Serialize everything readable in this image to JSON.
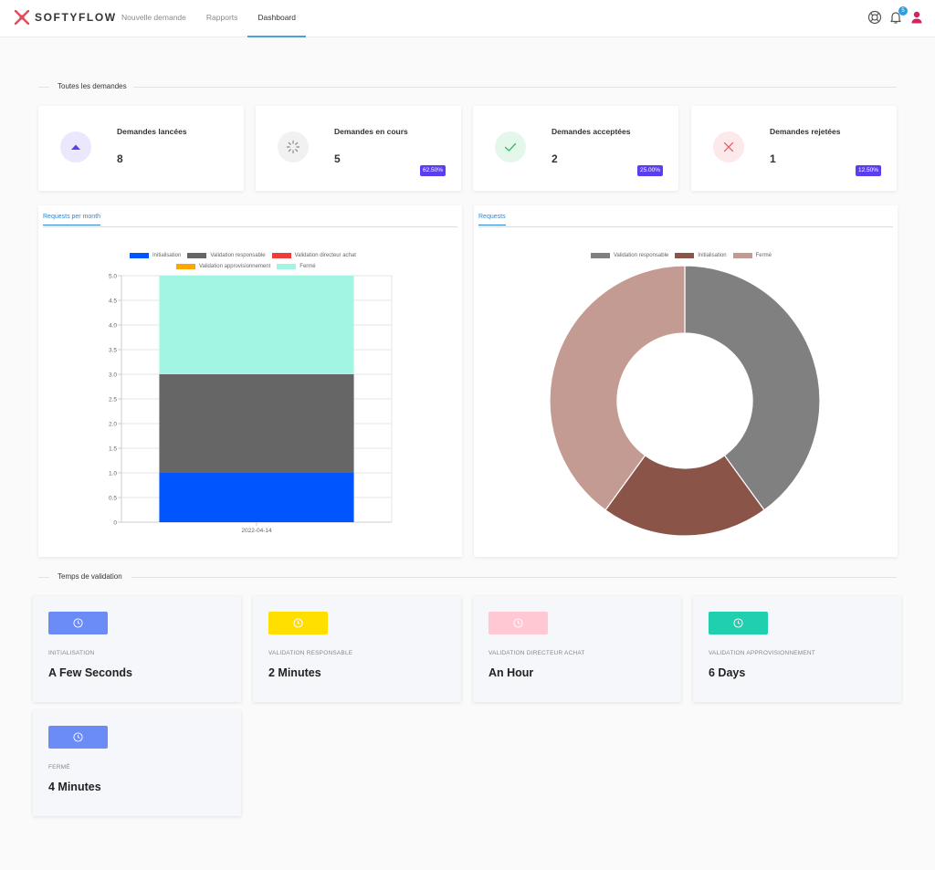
{
  "app": {
    "brand": "SOFTYFLOW"
  },
  "nav": [
    {
      "label": "Nouvelle demande"
    },
    {
      "label": "Rapports"
    },
    {
      "label": "Dashboard"
    }
  ],
  "header": {
    "notification_count": "5",
    "icons": [
      "support-icon",
      "bell-icon",
      "user-icon"
    ]
  },
  "sections": {
    "all_requests": "Toutes les demandes",
    "validation_time": "Temps de validation"
  },
  "stats": [
    {
      "title": "Demandes lancées",
      "value": "8",
      "pct": "",
      "icon": "triangle-up-icon",
      "icon_bg": "#ebe7fd",
      "icon_color": "#5b3ef0"
    },
    {
      "title": "Demandes en cours",
      "value": "5",
      "pct": "62.50%",
      "icon": "spinner-icon",
      "icon_bg": "#f1f1f1",
      "icon_color": "#888888"
    },
    {
      "title": "Demandes acceptées",
      "value": "2",
      "pct": "25.00%",
      "icon": "check-icon",
      "icon_bg": "#e3f8ea",
      "icon_color": "#3bb56a"
    },
    {
      "title": "Demandes rejetées",
      "value": "1",
      "pct": "12.50%",
      "icon": "close-icon",
      "icon_bg": "#fde8ea",
      "icon_color": "#e0505c"
    }
  ],
  "panels": {
    "left_tab": "Requests per month",
    "right_tab": "Requests"
  },
  "chart_data": [
    {
      "type": "bar",
      "stacked": true,
      "categories": [
        "2022-04-14"
      ],
      "series": [
        {
          "name": "Initialisation",
          "values": [
            1
          ],
          "color": "#0055ff"
        },
        {
          "name": "Validation responsable",
          "values": [
            2
          ],
          "color": "#666666"
        },
        {
          "name": "Validation directeur achat",
          "values": [
            0
          ],
          "color": "#ee3b3b"
        },
        {
          "name": "Validation approvisionnement",
          "values": [
            0
          ],
          "color": "#ffa500"
        },
        {
          "name": "Fermé",
          "values": [
            2
          ],
          "color": "#a2f5e2"
        }
      ],
      "ylim": [
        0,
        5
      ],
      "yticks": [
        "0",
        "0.5",
        "1.0",
        "1.5",
        "2.0",
        "2.5",
        "3.0",
        "3.5",
        "4.0",
        "4.5",
        "5.0"
      ],
      "grid": true,
      "legend": "top"
    },
    {
      "type": "pie",
      "donut": true,
      "slices": [
        {
          "name": "Validation responsable",
          "value": 2,
          "color": "#808080"
        },
        {
          "name": "Initialisation",
          "value": 1,
          "color": "#8b5449"
        },
        {
          "name": "Fermé",
          "value": 2,
          "color": "#c49b93"
        }
      ],
      "legend": "top"
    }
  ],
  "validation_times": [
    {
      "label": "INITIALISATION",
      "value": "A Few Seconds",
      "color": "#6b8cf6"
    },
    {
      "label": "VALIDATION RESPONSABLE",
      "value": "2 Minutes",
      "color": "#ffdf00"
    },
    {
      "label": "VALIDATION DIRECTEUR ACHAT",
      "value": "An Hour",
      "color": "#ffc8d2"
    },
    {
      "label": "VALIDATION APPROVISIONNEMENT",
      "value": "6 Days",
      "color": "#1fcfae"
    },
    {
      "label": "FERMÉ",
      "value": "4 Minutes",
      "color": "#6b8cf6"
    }
  ]
}
